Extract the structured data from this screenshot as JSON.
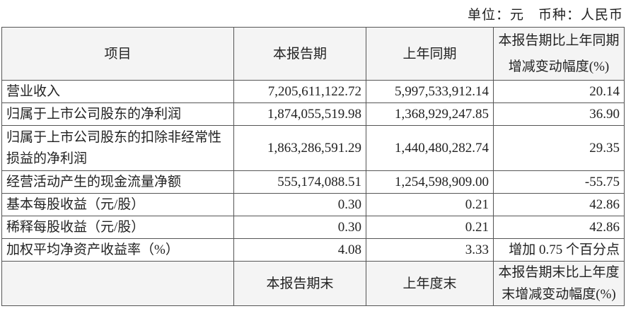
{
  "unit_note": "单位：元　币种：人民币",
  "header": {
    "item": "项目",
    "current": "本报告期",
    "prior": "上年同期",
    "change": "本报告期比上年同期增减变动幅度(%)"
  },
  "rows": [
    {
      "item": "营业收入",
      "current": "7,205,611,122.72",
      "prior": "5,997,533,912.14",
      "change": "20.14"
    },
    {
      "item": "归属于上市公司股东的净利润",
      "current": "1,874,055,519.98",
      "prior": "1,368,929,247.85",
      "change": "36.90"
    },
    {
      "item": "归属于上市公司股东的扣除非经常性损益的净利润",
      "current": "1,863,286,591.29",
      "prior": "1,440,480,282.74",
      "change": "29.35"
    },
    {
      "item": "经营活动产生的现金流量净额",
      "current": "555,174,088.51",
      "prior": "1,254,598,909.00",
      "change": "-55.75"
    },
    {
      "item": "基本每股收益（元/股）",
      "current": "0.30",
      "prior": "0.21",
      "change": "42.86"
    },
    {
      "item": "稀释每股收益（元/股）",
      "current": "0.30",
      "prior": "0.21",
      "change": "42.86"
    },
    {
      "item": "加权平均净资产收益率（%）",
      "current": "4.08",
      "prior": "3.33",
      "change": "增加 0.75 个百分点"
    }
  ],
  "footer_header": {
    "item": "",
    "current": "本报告期末",
    "prior": "上年度末",
    "change": "本报告期末比上年度末增减变动幅度(%)"
  }
}
